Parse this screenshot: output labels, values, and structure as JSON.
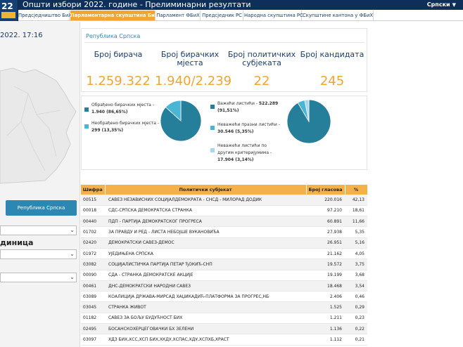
{
  "header": {
    "logo_text": "22",
    "title": "Општи избори 2022. године - Прелиминарни резултати",
    "language": "Српски"
  },
  "tabs": [
    {
      "label": "Предсједништво БиХ",
      "active": false
    },
    {
      "label": "Парламентарна скупштина БиХ",
      "active": true
    },
    {
      "label": "Парламент ФБиХ",
      "active": false
    },
    {
      "label": "Предсједник РС",
      "active": false
    },
    {
      "label": "Народна скупштина РС",
      "active": false
    },
    {
      "label": "Скупштине кантона у ФБиХ",
      "active": false
    }
  ],
  "sidebar": {
    "datetime": "2022. 17:16",
    "button_label": "Република Српска",
    "unit_label": "диница"
  },
  "summary": {
    "region": "Република Српска",
    "stats": [
      {
        "title": "Број бирача",
        "value": "1.259.322"
      },
      {
        "title": "Број бирачких мјеста",
        "value": "1.940/2.239"
      },
      {
        "title": "Број политичких субјеката",
        "value": "22"
      },
      {
        "title": "Број кандидата",
        "value": "245"
      }
    ]
  },
  "pies": {
    "stations": {
      "processed_label": "Обрађено бирачких мјеста -",
      "processed_value": "1.940 (86,65%)",
      "unprocessed_label": "Необрађено бирачких мјеста -",
      "unprocessed_value": "299 (13,35%)",
      "slices": [
        86.65,
        13.35
      ]
    },
    "ballots": {
      "valid_label": "Важећи листићи -",
      "valid_value": "522.289 (91,51%)",
      "blank_label": "Неважећи празни листићи -",
      "blank_value": "30.546 (5,35%)",
      "other_label": "Неважећи листићи по другим критеријумима -",
      "other_value": "17.904 (3,14%)",
      "slices": [
        91.51,
        5.35,
        3.14
      ]
    }
  },
  "colors": {
    "primary": "#257f9b",
    "secondary": "#4bb5d5",
    "tertiary": "#a6d8ee",
    "accent": "#f2a531",
    "header": "#0e2f5a"
  },
  "table": {
    "headers": [
      "Шифра",
      "Политички субјекат",
      "Број гласова",
      "%"
    ],
    "rows": [
      [
        "00515",
        "САВЕЗ НЕЗАВИСНИХ СОЦИЈАЛДЕМОКРАТА - СНСД - МИЛОРАД ДОДИК",
        "220.016",
        "42,13"
      ],
      [
        "00018",
        "СДС-СРПСКА ДЕМОКРАТСКА СТРАНКА",
        "97.210",
        "18,61"
      ],
      [
        "00440",
        "ПДП - ПАРТИЈА ДЕМОКРАТСКОГ ПРОГРЕСА",
        "60.891",
        "11,66"
      ],
      [
        "01702",
        "ЗА ПРАВДУ И РЕД - ЛИСТА НЕБОЈШЕ ВУКАНОВИЋА",
        "27.938",
        "5,35"
      ],
      [
        "02420",
        "ДЕМОКРАТСКИ САВЕЗ-ДЕМОС",
        "26.951",
        "5,16"
      ],
      [
        "01972",
        "УЈЕДИЊЕНА СРПСКА",
        "21.162",
        "4,05"
      ],
      [
        "03082",
        "СОЦИЈАЛИСТИЧКА ПАРТИЈА ПЕТАР ЂОКИЋ-СНП",
        "19.572",
        "3,75"
      ],
      [
        "00090",
        "СДА - СТРАНКА ДЕМОКРАТСКЕ АКЦИЈЕ",
        "19.199",
        "3,68"
      ],
      [
        "00461",
        "ДНС-ДЕМОКРАТСКИ НАРОДНИ САВЕЗ",
        "18.468",
        "3,54"
      ],
      [
        "03089",
        "КОАЛИЦИЈА ДРЖАВА-МИРСАД ХАЏИКАДИЋ-ПЛАТФОРМА ЗА ПРОГРЕС,НБ",
        "2.406",
        "0,46"
      ],
      [
        "03045",
        "СТРАНКА ЖИВОТ",
        "1.525",
        "0,29"
      ],
      [
        "01182",
        "САВЕЗ ЗА БОЉУ БУДУЋНОСТ БИХ",
        "1.211",
        "0,23"
      ],
      [
        "02495",
        "БОСАНСКОХЕРЦЕГОВАЧКИ БХ ЗЕЛЕНИ",
        "1.136",
        "0,22"
      ],
      [
        "03097",
        "ХДЗ БИХ,ХСС,ХСП БИХ,ХКДУ,ХСПАС,ХДУ,ХСПХБ,ХРАСТ",
        "1.112",
        "0,21"
      ]
    ]
  }
}
